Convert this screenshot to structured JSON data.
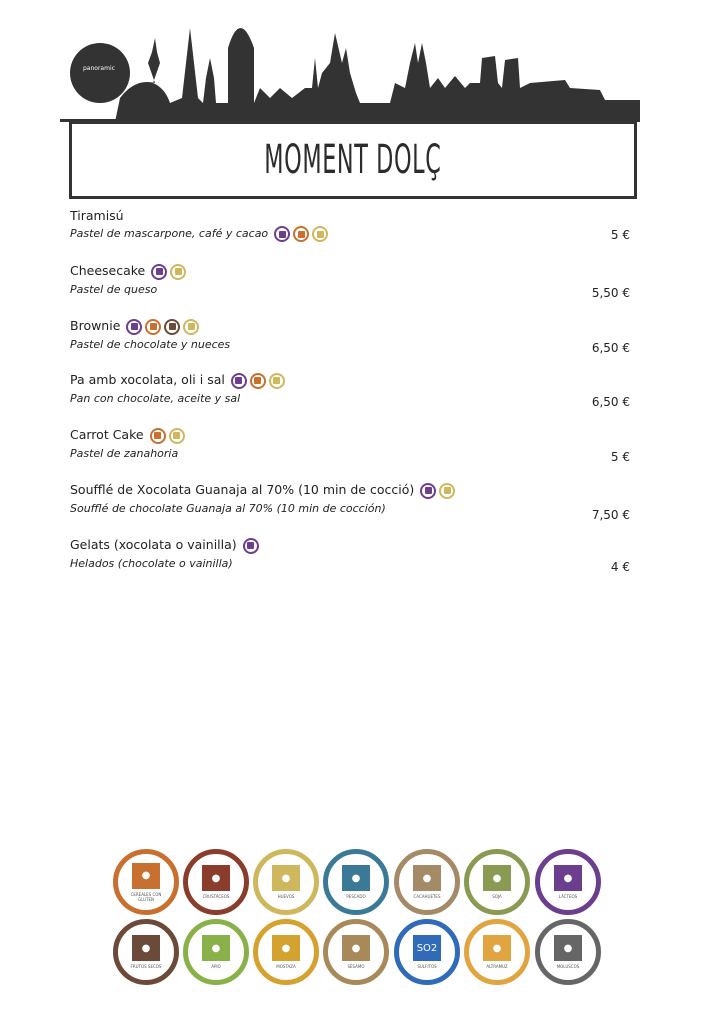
{
  "header": {
    "logo_text": "panoramic",
    "title": "MOMENT DOLÇ"
  },
  "colors": {
    "dark": "#333333",
    "lacteos": "#6b3e8e",
    "gluten": "#c8702f",
    "huevos": "#cfb75e",
    "frutos_secos": "#6b4a3a"
  },
  "items": [
    {
      "name": "Tiramisú",
      "desc": "Pastel de mascarpone, café y cacao",
      "price": "5 €",
      "allergens": [
        "lacteos",
        "gluten",
        "huevos"
      ]
    },
    {
      "name": "Cheesecake",
      "desc": "Pastel de queso",
      "price": "5,50 €",
      "allergens": [
        "lacteos",
        "huevos"
      ]
    },
    {
      "name": "Brownie",
      "desc": "Pastel de chocolate y nueces",
      "price": "6,50 €",
      "allergens": [
        "lacteos",
        "gluten",
        "frutos_secos",
        "huevos"
      ]
    },
    {
      "name": "Pa amb xocolata, oli i sal",
      "desc": "Pan con chocolate, aceite y sal",
      "price": "6,50 €",
      "allergens": [
        "lacteos",
        "gluten",
        "huevos"
      ]
    },
    {
      "name": "Carrot Cake",
      "desc": "Pastel de zanahoria",
      "price": "5 €",
      "allergens": [
        "gluten",
        "huevos"
      ]
    },
    {
      "name": "Soufflé de Xocolata Guanaja al 70% (10 min de cocció)",
      "desc": "Soufflé de chocolate Guanaja al 70% (10 min de cocción)",
      "price": "7,50 €",
      "allergens": [
        "lacteos",
        "huevos"
      ]
    },
    {
      "name": "Gelats (xocolata o vainilla)",
      "desc": "Helados (chocolate o vainilla)",
      "price": "4 €",
      "allergens": [
        "lacteos"
      ]
    }
  ],
  "legend": [
    {
      "label": "CEREALES CON GLUTEN",
      "icon": "wheat-icon",
      "color": "#c8702f"
    },
    {
      "label": "CRUSTÁCEOS",
      "icon": "shrimp-icon",
      "color": "#8a3d2c"
    },
    {
      "label": "HUEVOS",
      "icon": "egg-icon",
      "color": "#cfb75e"
    },
    {
      "label": "PESCADO",
      "icon": "fish-icon",
      "color": "#3b7a96"
    },
    {
      "label": "CACAHUETES",
      "icon": "peanut-icon",
      "color": "#a58a68"
    },
    {
      "label": "SOJA",
      "icon": "soy-icon",
      "color": "#8a9a52"
    },
    {
      "label": "LÁCTEOS",
      "icon": "milk-icon",
      "color": "#6b3e8e"
    },
    {
      "label": "FRUTOS SECOS",
      "icon": "nut-icon",
      "color": "#6b4a3a"
    },
    {
      "label": "APIO",
      "icon": "celery-icon",
      "color": "#8ab04a"
    },
    {
      "label": "MOSTAZA",
      "icon": "mustard-icon",
      "color": "#d4a22e"
    },
    {
      "label": "SÉSAMO",
      "icon": "sesame-icon",
      "color": "#a88a5a"
    },
    {
      "label": "SULFITOS",
      "icon": "so2-icon",
      "color": "#2f6bb8",
      "text": "SO2"
    },
    {
      "label": "ALTRAMUZ",
      "icon": "lupin-icon",
      "color": "#e0a440"
    },
    {
      "label": "MOLUSCOS",
      "icon": "shell-icon",
      "color": "#666666"
    }
  ]
}
